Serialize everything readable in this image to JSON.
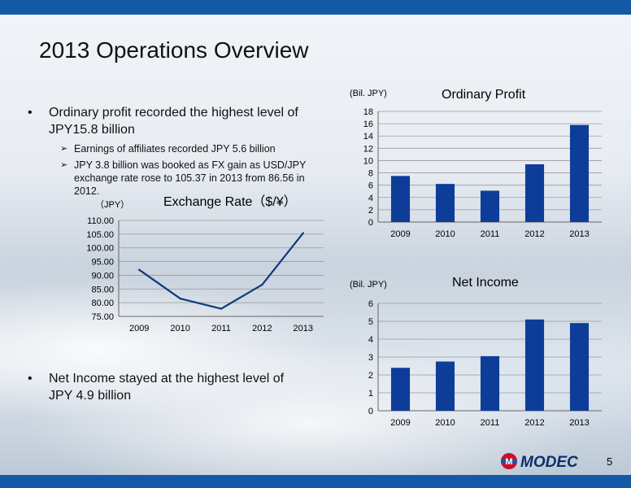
{
  "slide": {
    "title": "2013 Operations Overview",
    "page_number": "5",
    "bullets": [
      {
        "text_line1": "Ordinary profit recorded the highest level of",
        "text_line2": "JPY15.8 billion"
      },
      {
        "text_line1": "Net Income stayed at the highest level of",
        "text_line2": "JPY 4.9 billion"
      }
    ],
    "sub_bullets": [
      {
        "lines": [
          "Earnings of affiliates recorded JPY 5.6 billion"
        ]
      },
      {
        "lines": [
          "JPY 3.8 billion was booked as FX gain as USD/JPY",
          "exchange rate rose to 105.37 in 2013 from 86.56 in",
          "2012."
        ]
      }
    ],
    "logo_text": "MODEC",
    "logo_mark": "M",
    "colors": {
      "accent": "#1459a8",
      "bar": "#0d3d99",
      "line": "#0d3a7a"
    }
  },
  "chart_data": [
    {
      "type": "line",
      "title": "Exchange Rate（$/¥）",
      "unit_label": "（JPY）",
      "categories": [
        "2009",
        "2010",
        "2011",
        "2012",
        "2013"
      ],
      "values": [
        92.0,
        81.5,
        77.8,
        86.56,
        105.37
      ],
      "ylim": [
        75,
        110
      ],
      "yticks": [
        "75.00",
        "80.00",
        "85.00",
        "90.00",
        "95.00",
        "100.00",
        "105.00",
        "110.00"
      ],
      "grid": true
    },
    {
      "type": "bar",
      "title": "Ordinary Profit",
      "unit_label": "(Bil. JPY)",
      "categories": [
        "2009",
        "2010",
        "2011",
        "2012",
        "2013"
      ],
      "values": [
        7.5,
        6.2,
        5.1,
        9.4,
        15.8
      ],
      "ylim": [
        0,
        18
      ],
      "yticks": [
        "0",
        "2",
        "4",
        "6",
        "8",
        "10",
        "12",
        "14",
        "16",
        "18"
      ],
      "grid": true
    },
    {
      "type": "bar",
      "title": "Net Income",
      "unit_label": "(Bil. JPY)",
      "categories": [
        "2009",
        "2010",
        "2011",
        "2012",
        "2013"
      ],
      "values": [
        2.4,
        2.75,
        3.05,
        5.1,
        4.9
      ],
      "ylim": [
        0,
        6
      ],
      "yticks": [
        "0",
        "1",
        "2",
        "3",
        "4",
        "5",
        "6"
      ],
      "grid": true
    }
  ]
}
